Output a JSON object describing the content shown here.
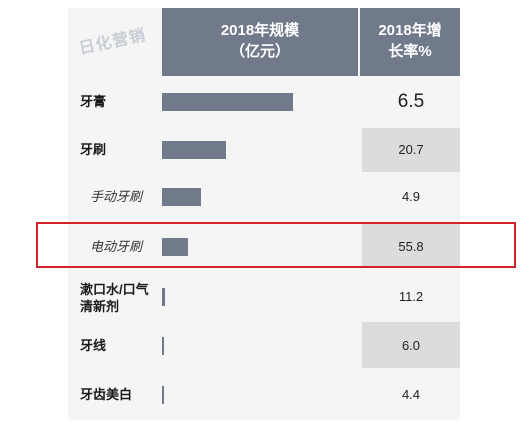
{
  "header": {
    "scale": "2018年规模\n（亿元）",
    "growth": "2018年增\n长率%"
  },
  "watermark": "日化营销",
  "highlight_color": "#d2232a",
  "bar_color": "#717a8b",
  "chart_data": {
    "type": "bar",
    "orientation": "horizontal",
    "categories": [
      "牙膏",
      "牙刷",
      "手动牙刷",
      "电动牙刷",
      "漱口水/口气清新剂",
      "牙线",
      "牙齿美白"
    ],
    "series": [
      {
        "name": "2018年规模（亿元）",
        "values": [
          254,
          125,
          75,
          50,
          5,
          3,
          2
        ]
      }
    ],
    "growth_labels": [
      "6.5",
      "20.7",
      "4.9",
      "55.8",
      "11.2",
      "6.0",
      "4.4"
    ],
    "xlim": [
      0,
      380
    ],
    "highlighted_category": "电动牙刷",
    "grid": false
  }
}
